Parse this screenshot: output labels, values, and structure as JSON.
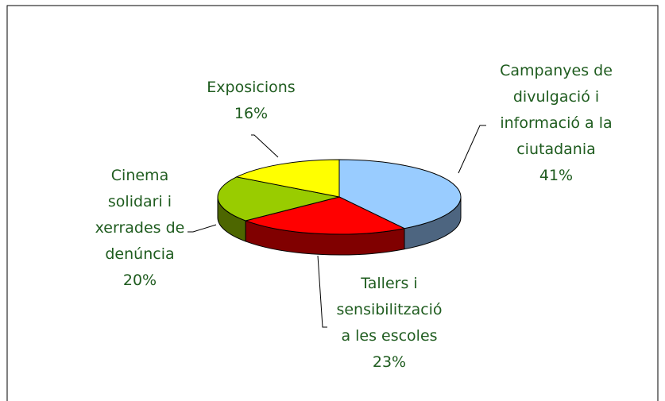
{
  "chart_data": {
    "type": "pie3d",
    "categories": [
      "Campanyes de\ndivulgació i\ninformació a la\nciutadania",
      "Tallers i\nsensibilització\na les escoles",
      "Cinema\nsolidari i\nxerrades de\ndenúncia",
      "Exposicions"
    ],
    "values": [
      41,
      23,
      20,
      16
    ],
    "value_labels": [
      "41%",
      "23%",
      "20%",
      "16%"
    ],
    "colors": [
      "#99ccff",
      "#ff0000",
      "#99cc00",
      "#ffff00"
    ],
    "side_colors": [
      "#4d6580",
      "#800000",
      "#4d6600",
      "#808000"
    ]
  }
}
